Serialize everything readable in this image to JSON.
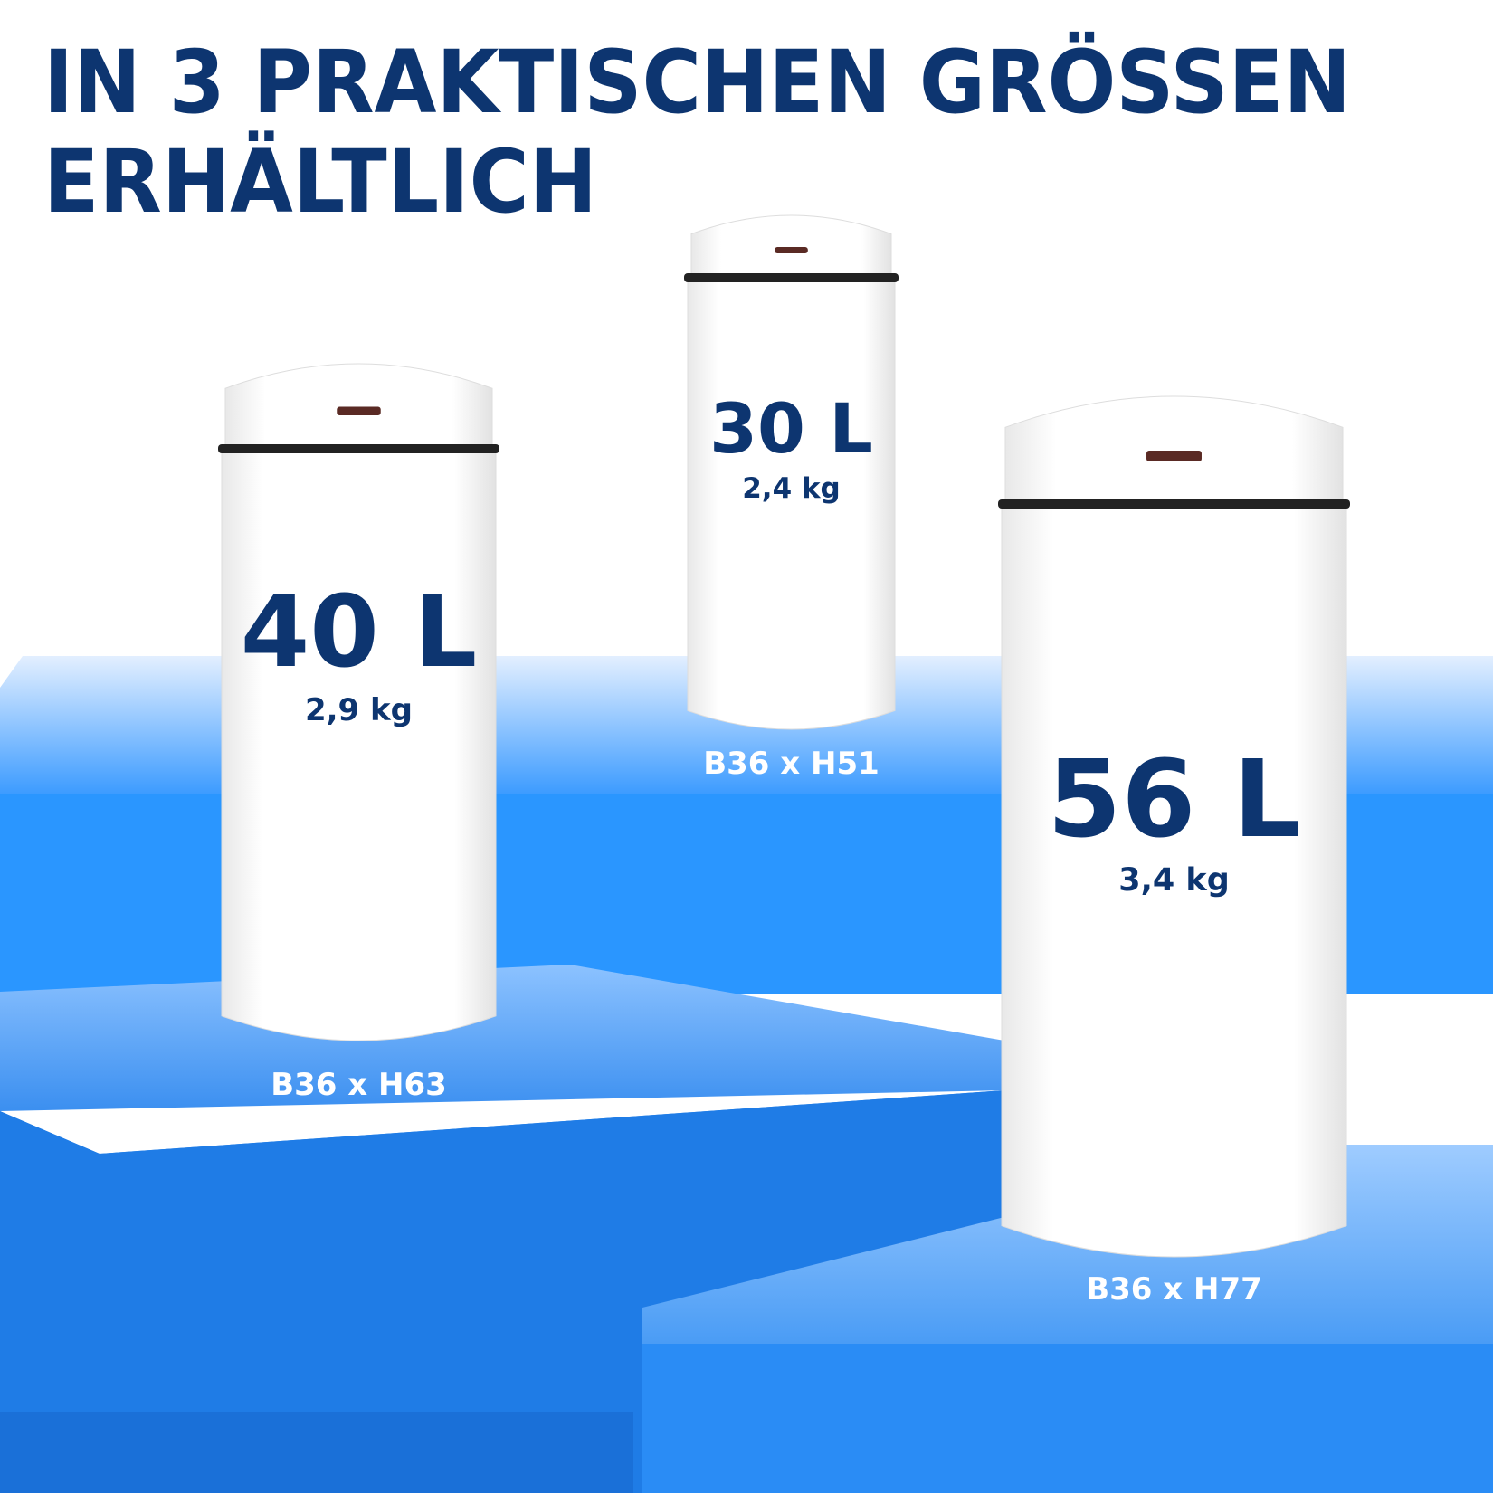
{
  "heading": {
    "line1": "IN 3 PRAKTISCHEN GRÖSSEN",
    "line2": "ERHÄLTLICH"
  },
  "products": [
    {
      "volume": "40 L",
      "weight": "2,9 kg",
      "dimensions": "B36 x H63"
    },
    {
      "volume": "30 L",
      "weight": "2,4 kg",
      "dimensions": "B36 x H51"
    },
    {
      "volume": "56 L",
      "weight": "3,4 kg",
      "dimensions": "B36 x H77"
    }
  ]
}
